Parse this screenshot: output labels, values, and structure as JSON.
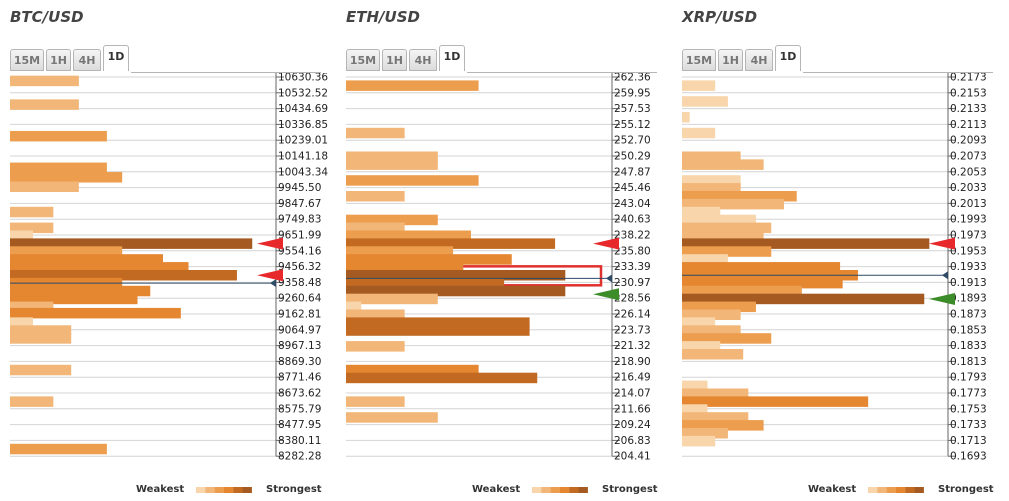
{
  "colors": {
    "level1": "#f8d5ab",
    "level2": "#f1b678",
    "level3": "#ec9e4e",
    "level4": "#e58630",
    "level5": "#c26a22",
    "level6": "#a45a20",
    "red_arrow": "#e8292c",
    "green_arrow": "#3c8d2a",
    "price_line": "#2d4a66",
    "highlight": "#e0312f",
    "grid": "#d4d4d4"
  },
  "timeframe_tabs": [
    "15M",
    "1H",
    "4H",
    "1D"
  ],
  "active_tab": "1D",
  "legend": {
    "weakest": "Weakest",
    "strongest": "Strongest"
  },
  "panels": [
    {
      "title": "BTC/USD",
      "levels": [
        "10630.36",
        "10532.52",
        "10434.69",
        "10336.85",
        "10239.01",
        "10141.18",
        "10043.34",
        "9945.50",
        "9847.67",
        "9749.83",
        "9651.99",
        "9554.16",
        "9456.32",
        "9358.48",
        "9260.64",
        "9162.81",
        "9064.97",
        "8967.13",
        "8869.30",
        "8771.46",
        "8673.62",
        "8575.79",
        "8477.95",
        "8380.11",
        "8282.28"
      ],
      "chart_data": {
        "type": "bar",
        "orientation": "horizontal",
        "strength_scale_max": 1.0,
        "bars": [
          {
            "center": 0.5,
            "value": 0.27,
            "level": 2
          },
          {
            "center": 2.0,
            "value": 0.27,
            "level": 2
          },
          {
            "center": 4.0,
            "value": 0.38,
            "level": 3
          },
          {
            "center": 6.0,
            "value": 0.38,
            "level": 3
          },
          {
            "center": 6.6,
            "value": 0.44,
            "level": 3
          },
          {
            "center": 7.2,
            "value": 0.27,
            "level": 2
          },
          {
            "center": 8.8,
            "value": 0.17,
            "level": 2
          },
          {
            "center": 9.8,
            "value": 0.17,
            "level": 2
          },
          {
            "center": 10.3,
            "value": 0.09,
            "level": 1
          },
          {
            "center": 10.8,
            "value": 0.95,
            "level": 6
          },
          {
            "center": 11.3,
            "value": 0.44,
            "level": 3
          },
          {
            "center": 11.8,
            "value": 0.6,
            "level": 4
          },
          {
            "center": 12.3,
            "value": 0.7,
            "level": 4
          },
          {
            "center": 12.8,
            "value": 0.89,
            "level": 5
          },
          {
            "center": 13.3,
            "value": 0.44,
            "level": 4
          },
          {
            "center": 13.8,
            "value": 0.55,
            "level": 4
          },
          {
            "center": 14.3,
            "value": 0.5,
            "level": 4
          },
          {
            "center": 14.8,
            "value": 0.17,
            "level": 2
          },
          {
            "center": 15.2,
            "value": 0.67,
            "level": 4
          },
          {
            "center": 15.8,
            "value": 0.09,
            "level": 1
          },
          {
            "center": 16.3,
            "value": 0.24,
            "level": 2
          },
          {
            "center": 16.8,
            "value": 0.24,
            "level": 2
          },
          {
            "center": 18.8,
            "value": 0.24,
            "level": 2
          },
          {
            "center": 20.8,
            "value": 0.17,
            "level": 2
          },
          {
            "center": 23.8,
            "value": 0.38,
            "level": 3
          },
          {
            "center": 25.8,
            "value": 0.15,
            "level": 1
          }
        ],
        "markers": [
          {
            "type": "resistance-arrow",
            "at": 10.8,
            "color": "red"
          },
          {
            "type": "resistance-arrow",
            "at": 12.8,
            "color": "red"
          }
        ],
        "current_price_at": 13.3
      }
    },
    {
      "title": "ETH/USD",
      "levels": [
        "262.36",
        "259.95",
        "257.53",
        "255.12",
        "252.70",
        "250.29",
        "247.87",
        "245.46",
        "243.04",
        "240.63",
        "238.22",
        "235.80",
        "233.39",
        "230.97",
        "228.56",
        "226.14",
        "223.73",
        "221.32",
        "218.90",
        "216.49",
        "214.07",
        "211.66",
        "209.24",
        "206.83",
        "204.41"
      ],
      "chart_data": {
        "type": "bar",
        "orientation": "horizontal",
        "strength_scale_max": 1.0,
        "bars": [
          {
            "center": 0.8,
            "value": 0.52,
            "level": 3
          },
          {
            "center": 3.8,
            "value": 0.23,
            "level": 2
          },
          {
            "center": 5.3,
            "value": 0.36,
            "level": 2
          },
          {
            "center": 5.8,
            "value": 0.36,
            "level": 2
          },
          {
            "center": 6.8,
            "value": 0.52,
            "level": 3
          },
          {
            "center": 7.8,
            "value": 0.23,
            "level": 2
          },
          {
            "center": 9.3,
            "value": 0.36,
            "level": 3
          },
          {
            "center": 9.8,
            "value": 0.23,
            "level": 2
          },
          {
            "center": 10.3,
            "value": 0.49,
            "level": 3
          },
          {
            "center": 10.8,
            "value": 0.82,
            "level": 5
          },
          {
            "center": 11.3,
            "value": 0.42,
            "level": 3
          },
          {
            "center": 11.8,
            "value": 0.65,
            "level": 4
          },
          {
            "center": 12.3,
            "value": 0.46,
            "level": 4
          },
          {
            "center": 12.8,
            "value": 0.86,
            "level": 6
          },
          {
            "center": 13.3,
            "value": 0.62,
            "level": 5
          },
          {
            "center": 13.8,
            "value": 0.86,
            "level": 6
          },
          {
            "center": 14.3,
            "value": 0.36,
            "level": 2
          },
          {
            "center": 14.8,
            "value": 0.06,
            "level": 1
          },
          {
            "center": 15.3,
            "value": 0.23,
            "level": 2
          },
          {
            "center": 15.8,
            "value": 0.72,
            "level": 5
          },
          {
            "center": 16.3,
            "value": 0.72,
            "level": 5
          },
          {
            "center": 17.3,
            "value": 0.23,
            "level": 2
          },
          {
            "center": 18.8,
            "value": 0.52,
            "level": 4
          },
          {
            "center": 19.3,
            "value": 0.75,
            "level": 5
          },
          {
            "center": 20.8,
            "value": 0.23,
            "level": 2
          },
          {
            "center": 21.8,
            "value": 0.36,
            "level": 2
          },
          {
            "center": 25.8,
            "value": 0.52,
            "level": 3
          }
        ],
        "markers": [
          {
            "type": "resistance-arrow",
            "at": 10.8,
            "color": "red"
          },
          {
            "type": "support-arrow",
            "at": 14.0,
            "color": "green"
          },
          {
            "type": "highlight-box",
            "from": 12.3,
            "to": 13.5
          }
        ],
        "current_price_at": 13.0
      }
    },
    {
      "title": "XRP/USD",
      "levels": [
        "0.2173",
        "0.2153",
        "0.2133",
        "0.2113",
        "0.2093",
        "0.2073",
        "0.2053",
        "0.2033",
        "0.2013",
        "0.1993",
        "0.1973",
        "0.1953",
        "0.1933",
        "0.1913",
        "0.1893",
        "0.1873",
        "0.1853",
        "0.1833",
        "0.1813",
        "0.1793",
        "0.1773",
        "0.1753",
        "0.1733",
        "0.1713",
        "0.1693"
      ],
      "chart_data": {
        "type": "bar",
        "orientation": "horizontal",
        "strength_scale_max": 1.0,
        "bars": [
          {
            "center": 0.8,
            "value": 0.13,
            "level": 1
          },
          {
            "center": 1.8,
            "value": 0.18,
            "level": 1
          },
          {
            "center": 2.8,
            "value": 0.03,
            "level": 1
          },
          {
            "center": 3.8,
            "value": 0.13,
            "level": 1
          },
          {
            "center": 5.3,
            "value": 0.23,
            "level": 2
          },
          {
            "center": 5.8,
            "value": 0.32,
            "level": 2
          },
          {
            "center": 6.8,
            "value": 0.23,
            "level": 1
          },
          {
            "center": 7.3,
            "value": 0.23,
            "level": 2
          },
          {
            "center": 7.8,
            "value": 0.45,
            "level": 3
          },
          {
            "center": 8.3,
            "value": 0.4,
            "level": 2
          },
          {
            "center": 8.8,
            "value": 0.15,
            "level": 1
          },
          {
            "center": 9.3,
            "value": 0.29,
            "level": 1
          },
          {
            "center": 9.8,
            "value": 0.35,
            "level": 2
          },
          {
            "center": 10.3,
            "value": 0.32,
            "level": 2
          },
          {
            "center": 10.8,
            "value": 0.97,
            "level": 6
          },
          {
            "center": 11.3,
            "value": 0.35,
            "level": 3
          },
          {
            "center": 11.8,
            "value": 0.18,
            "level": 1
          },
          {
            "center": 12.3,
            "value": 0.62,
            "level": 4
          },
          {
            "center": 12.8,
            "value": 0.69,
            "level": 4
          },
          {
            "center": 13.3,
            "value": 0.63,
            "level": 4
          },
          {
            "center": 13.8,
            "value": 0.47,
            "level": 3
          },
          {
            "center": 14.3,
            "value": 0.95,
            "level": 6
          },
          {
            "center": 14.8,
            "value": 0.29,
            "level": 3
          },
          {
            "center": 15.3,
            "value": 0.23,
            "level": 2
          },
          {
            "center": 15.8,
            "value": 0.13,
            "level": 1
          },
          {
            "center": 16.3,
            "value": 0.23,
            "level": 2
          },
          {
            "center": 16.8,
            "value": 0.35,
            "level": 3
          },
          {
            "center": 17.3,
            "value": 0.15,
            "level": 1
          },
          {
            "center": 17.8,
            "value": 0.24,
            "level": 2
          },
          {
            "center": 19.8,
            "value": 0.1,
            "level": 1
          },
          {
            "center": 20.3,
            "value": 0.26,
            "level": 2
          },
          {
            "center": 20.8,
            "value": 0.73,
            "level": 4
          },
          {
            "center": 21.3,
            "value": 0.1,
            "level": 1
          },
          {
            "center": 21.8,
            "value": 0.26,
            "level": 2
          },
          {
            "center": 22.3,
            "value": 0.32,
            "level": 3
          },
          {
            "center": 22.8,
            "value": 0.18,
            "level": 2
          },
          {
            "center": 23.3,
            "value": 0.13,
            "level": 1
          }
        ],
        "markers": [
          {
            "type": "resistance-arrow",
            "at": 10.8,
            "color": "red"
          },
          {
            "type": "support-arrow",
            "at": 14.3,
            "color": "green"
          }
        ],
        "current_price_at": 12.8
      }
    }
  ]
}
